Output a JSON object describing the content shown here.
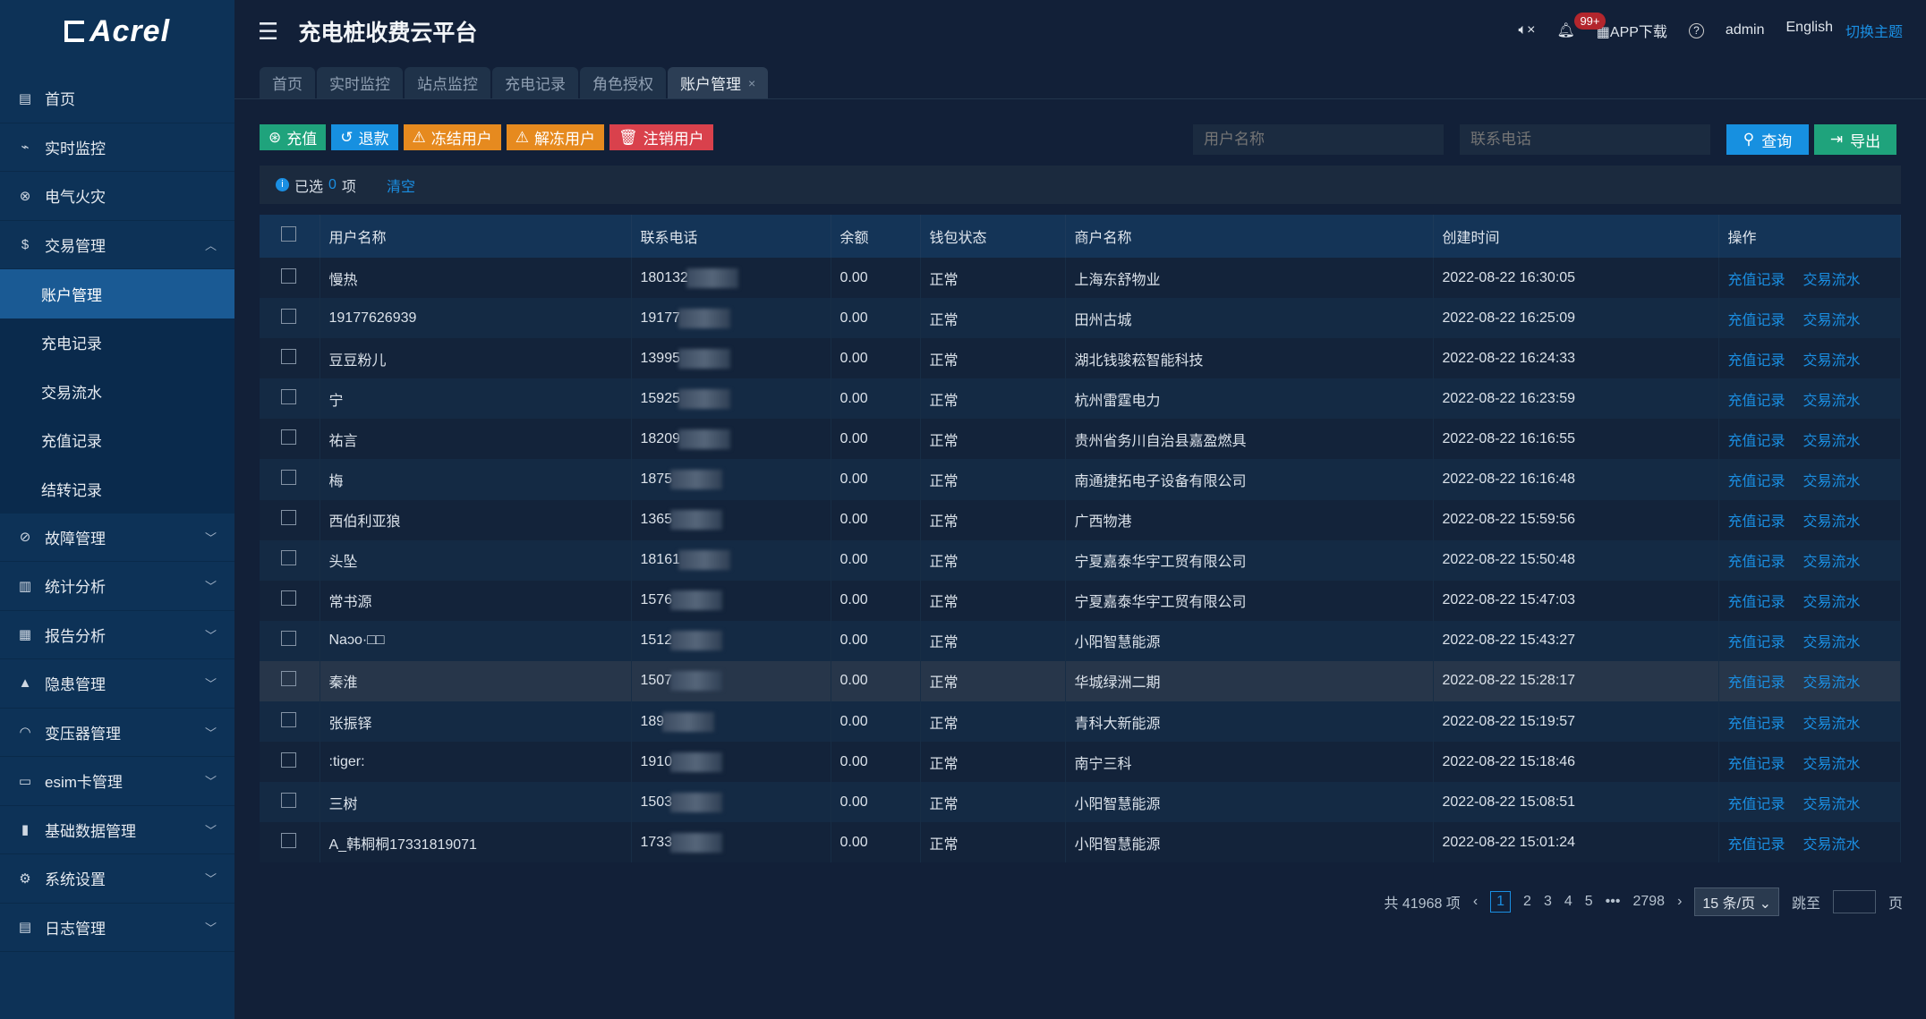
{
  "logo": "Acrel",
  "header": {
    "title": "充电桩收费云平台",
    "badge": "99+",
    "app_download": "APP下载",
    "user": "admin",
    "language": "English",
    "theme": "切换主题"
  },
  "sidebar": [
    {
      "label": "首页",
      "icon": "home-icon"
    },
    {
      "label": "实时监控",
      "icon": "monitor-icon"
    },
    {
      "label": "电气火灾",
      "icon": "fire-icon"
    },
    {
      "label": "交易管理",
      "icon": "money-icon",
      "expanded": true,
      "children": [
        "账户管理",
        "充电记录",
        "交易流水",
        "充值记录",
        "结转记录"
      ]
    },
    {
      "label": "故障管理",
      "icon": "fault-icon"
    },
    {
      "label": "统计分析",
      "icon": "bar-chart-icon"
    },
    {
      "label": "报告分析",
      "icon": "report-icon"
    },
    {
      "label": "隐患管理",
      "icon": "warning-icon"
    },
    {
      "label": "变压器管理",
      "icon": "gauge-icon"
    },
    {
      "label": "esim卡管理",
      "icon": "sim-icon"
    },
    {
      "label": "基础数据管理",
      "icon": "database-icon"
    },
    {
      "label": "系统设置",
      "icon": "gear-icon"
    },
    {
      "label": "日志管理",
      "icon": "log-icon"
    }
  ],
  "tabs": [
    "首页",
    "实时监控",
    "站点监控",
    "充电记录",
    "角色授权",
    "账户管理"
  ],
  "toolbar": {
    "recharge": "充值",
    "refund": "退款",
    "freeze": "冻结用户",
    "unfreeze": "解冻用户",
    "cancel": "注销用户"
  },
  "search": {
    "username_placeholder": "用户名称",
    "phone_placeholder": "联系电话",
    "query": "查询",
    "export": "导出"
  },
  "selection": {
    "prefix": "已选",
    "count": "0",
    "suffix": "项",
    "clear": "清空"
  },
  "table": {
    "columns": [
      "用户名称",
      "联系电话",
      "余额",
      "钱包状态",
      "商户名称",
      "创建时间",
      "操作"
    ],
    "actions": [
      "充值记录",
      "交易流水"
    ],
    "rows": [
      [
        "慢热",
        "180132",
        "0.00",
        "正常",
        "上海东舒物业",
        "2022-08-22 16:30:05"
      ],
      [
        "19177626939",
        "19177",
        "0.00",
        "正常",
        "田州古城",
        "2022-08-22 16:25:09"
      ],
      [
        "豆豆粉儿",
        "13995",
        "0.00",
        "正常",
        "湖北钱骏菘智能科技",
        "2022-08-22 16:24:33"
      ],
      [
        "宁",
        "15925",
        "0.00",
        "正常",
        "杭州雷霆电力",
        "2022-08-22 16:23:59"
      ],
      [
        "祐言",
        "18209",
        "0.00",
        "正常",
        "贵州省务川自治县嘉盈燃具",
        "2022-08-22 16:16:55"
      ],
      [
        "梅",
        "1875",
        "0.00",
        "正常",
        "南通捷拓电子设备有限公司",
        "2022-08-22 16:16:48"
      ],
      [
        "西伯利亚狼",
        "1365",
        "0.00",
        "正常",
        "广西物港",
        "2022-08-22 15:59:56"
      ],
      [
        "头坠",
        "18161",
        "0.00",
        "正常",
        "宁夏嘉泰华宇工贸有限公司",
        "2022-08-22 15:50:48"
      ],
      [
        "常书源",
        "1576",
        "0.00",
        "正常",
        "宁夏嘉泰华宇工贸有限公司",
        "2022-08-22 15:47:03"
      ],
      [
        "Naɔo·□□",
        "1512",
        "0.00",
        "正常",
        "小阳智慧能源",
        "2022-08-22 15:43:27"
      ],
      [
        "秦淮",
        "1507",
        "0.00",
        "正常",
        "华城绿洲二期",
        "2022-08-22 15:28:17"
      ],
      [
        "张振铎",
        "189",
        "0.00",
        "正常",
        "青科大新能源",
        "2022-08-22 15:19:57"
      ],
      [
        ":tiger:",
        "1910",
        "0.00",
        "正常",
        "南宁三科",
        "2022-08-22 15:18:46"
      ],
      [
        "三树",
        "1503",
        "0.00",
        "正常",
        "小阳智慧能源",
        "2022-08-22 15:08:51"
      ],
      [
        "A_韩桐桐17331819071",
        "1733",
        "0.00",
        "正常",
        "小阳智慧能源",
        "2022-08-22 15:01:24"
      ]
    ]
  },
  "pagination": {
    "total": "共 41968 项",
    "pages": [
      "1",
      "2",
      "3",
      "4",
      "5",
      "•••",
      "2798"
    ],
    "current": "1",
    "page_size": "15 条/页",
    "jump_label": "跳至",
    "page_suffix": "页"
  }
}
